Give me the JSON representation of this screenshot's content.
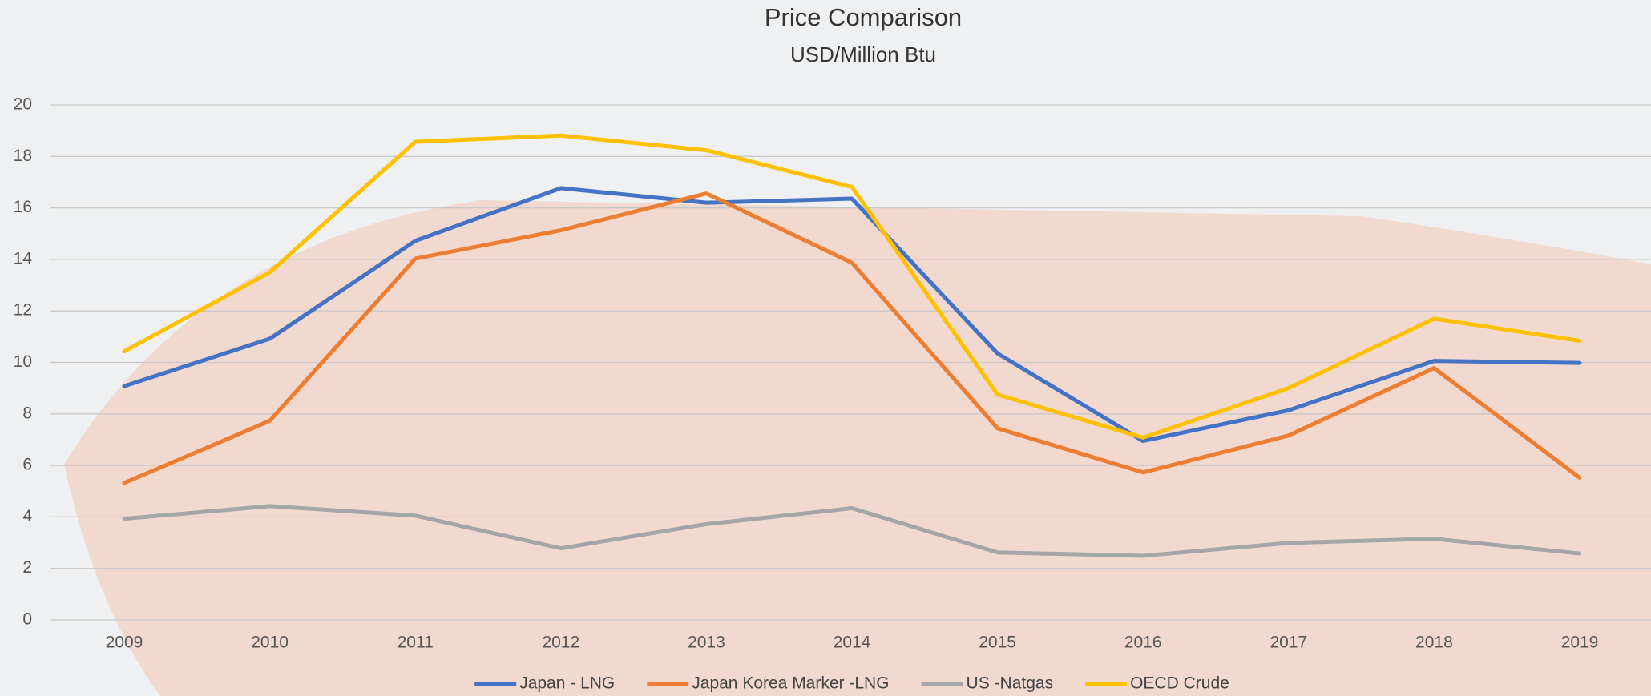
{
  "chart_data": {
    "type": "line",
    "title": "Price Comparison",
    "subtitle": "USD/Million Btu",
    "categories": [
      "2009",
      "2010",
      "2011",
      "2012",
      "2013",
      "2014",
      "2015",
      "2016",
      "2017",
      "2018",
      "2019"
    ],
    "series": [
      {
        "name": "Japan - LNG",
        "color": "#4472c4",
        "values": [
          9.08,
          10.92,
          14.72,
          16.77,
          16.2,
          16.36,
          10.35,
          6.95,
          8.14,
          10.06,
          9.98
        ]
      },
      {
        "name": "Japan Korea Marker -LNG",
        "color": "#ed7d31",
        "values": [
          5.32,
          7.73,
          14.03,
          15.13,
          16.56,
          13.87,
          7.44,
          5.73,
          7.16,
          9.78,
          5.52
        ]
      },
      {
        "name": "US -Natgas",
        "color": "#a5a5a5",
        "values": [
          3.93,
          4.42,
          4.05,
          2.78,
          3.72,
          4.34,
          2.62,
          2.49,
          2.99,
          3.15,
          2.58
        ]
      },
      {
        "name": "OECD Crude",
        "color": "#ffc000",
        "values": [
          10.43,
          13.5,
          18.57,
          18.81,
          18.24,
          16.81,
          8.75,
          7.08,
          9.0,
          11.7,
          10.84
        ]
      }
    ],
    "ylim": [
      0,
      20
    ],
    "yticks": [
      0,
      2,
      4,
      6,
      8,
      10,
      12,
      14,
      16,
      18,
      20
    ],
    "grid": true,
    "legend": "bottom"
  }
}
